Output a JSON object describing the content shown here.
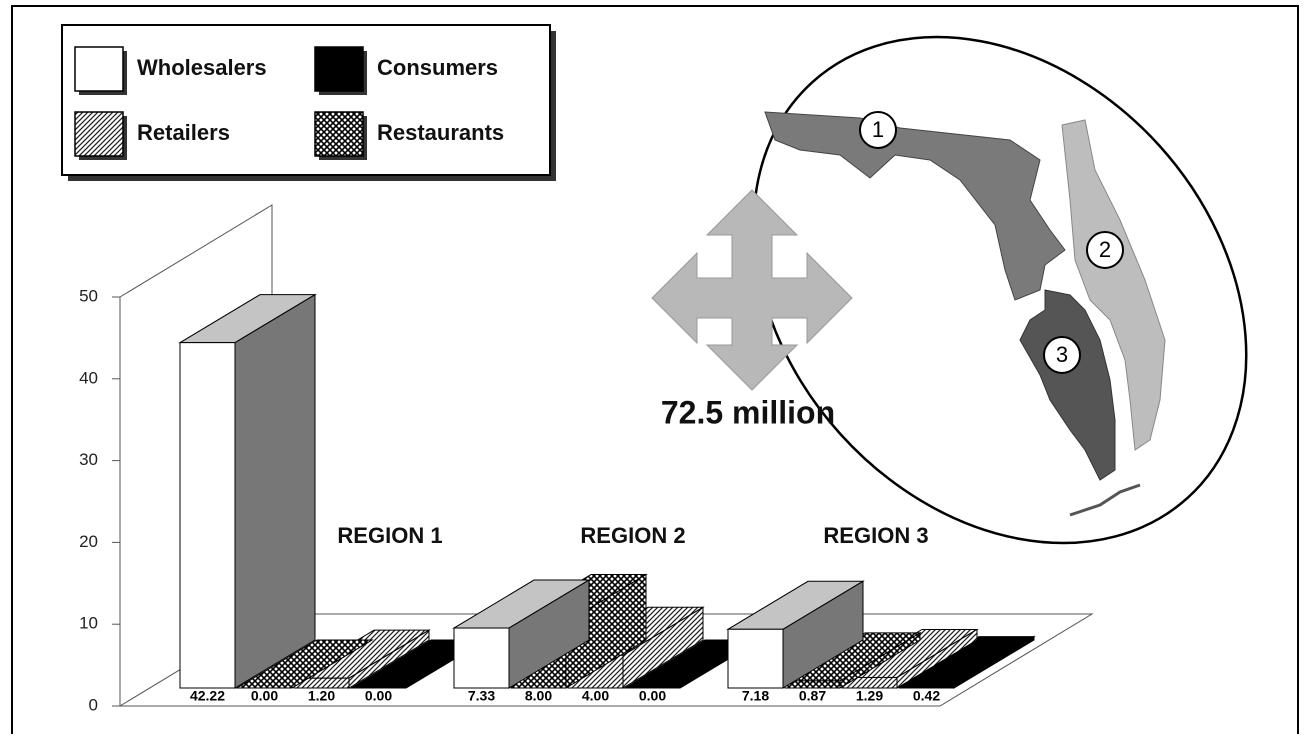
{
  "chart_data": {
    "type": "bar3d",
    "categories": [
      "REGION 1",
      "REGION 2",
      "REGION 3"
    ],
    "series": [
      {
        "name": "Wholesalers",
        "color": "#ffffff",
        "values": [
          42.22,
          7.33,
          7.18
        ],
        "value_labels": [
          "42.22",
          "7.33",
          "7.18"
        ]
      },
      {
        "name": "Restaurants",
        "color": "#444444",
        "pattern": "crosshatch",
        "values": [
          0.0,
          8.0,
          0.87
        ],
        "value_labels": [
          "0.00",
          "8.00",
          "0.87"
        ]
      },
      {
        "name": "Retailers",
        "color": "#888888",
        "pattern": "diagonal",
        "values": [
          1.2,
          4.0,
          1.29
        ],
        "value_labels": [
          "1.20",
          "4.00",
          "1.29"
        ]
      },
      {
        "name": "Consumers",
        "color": "#000000",
        "values": [
          0.0,
          0.0,
          0.42
        ],
        "value_labels": [
          "0.00",
          "0.00",
          "0.42"
        ]
      }
    ],
    "ylim": [
      0,
      50
    ],
    "yticks": [
      0,
      10,
      20,
      30,
      40,
      50
    ],
    "legend": "top-left",
    "annotation": "72.5 million",
    "map_labels": [
      "1",
      "2",
      "3"
    ]
  }
}
